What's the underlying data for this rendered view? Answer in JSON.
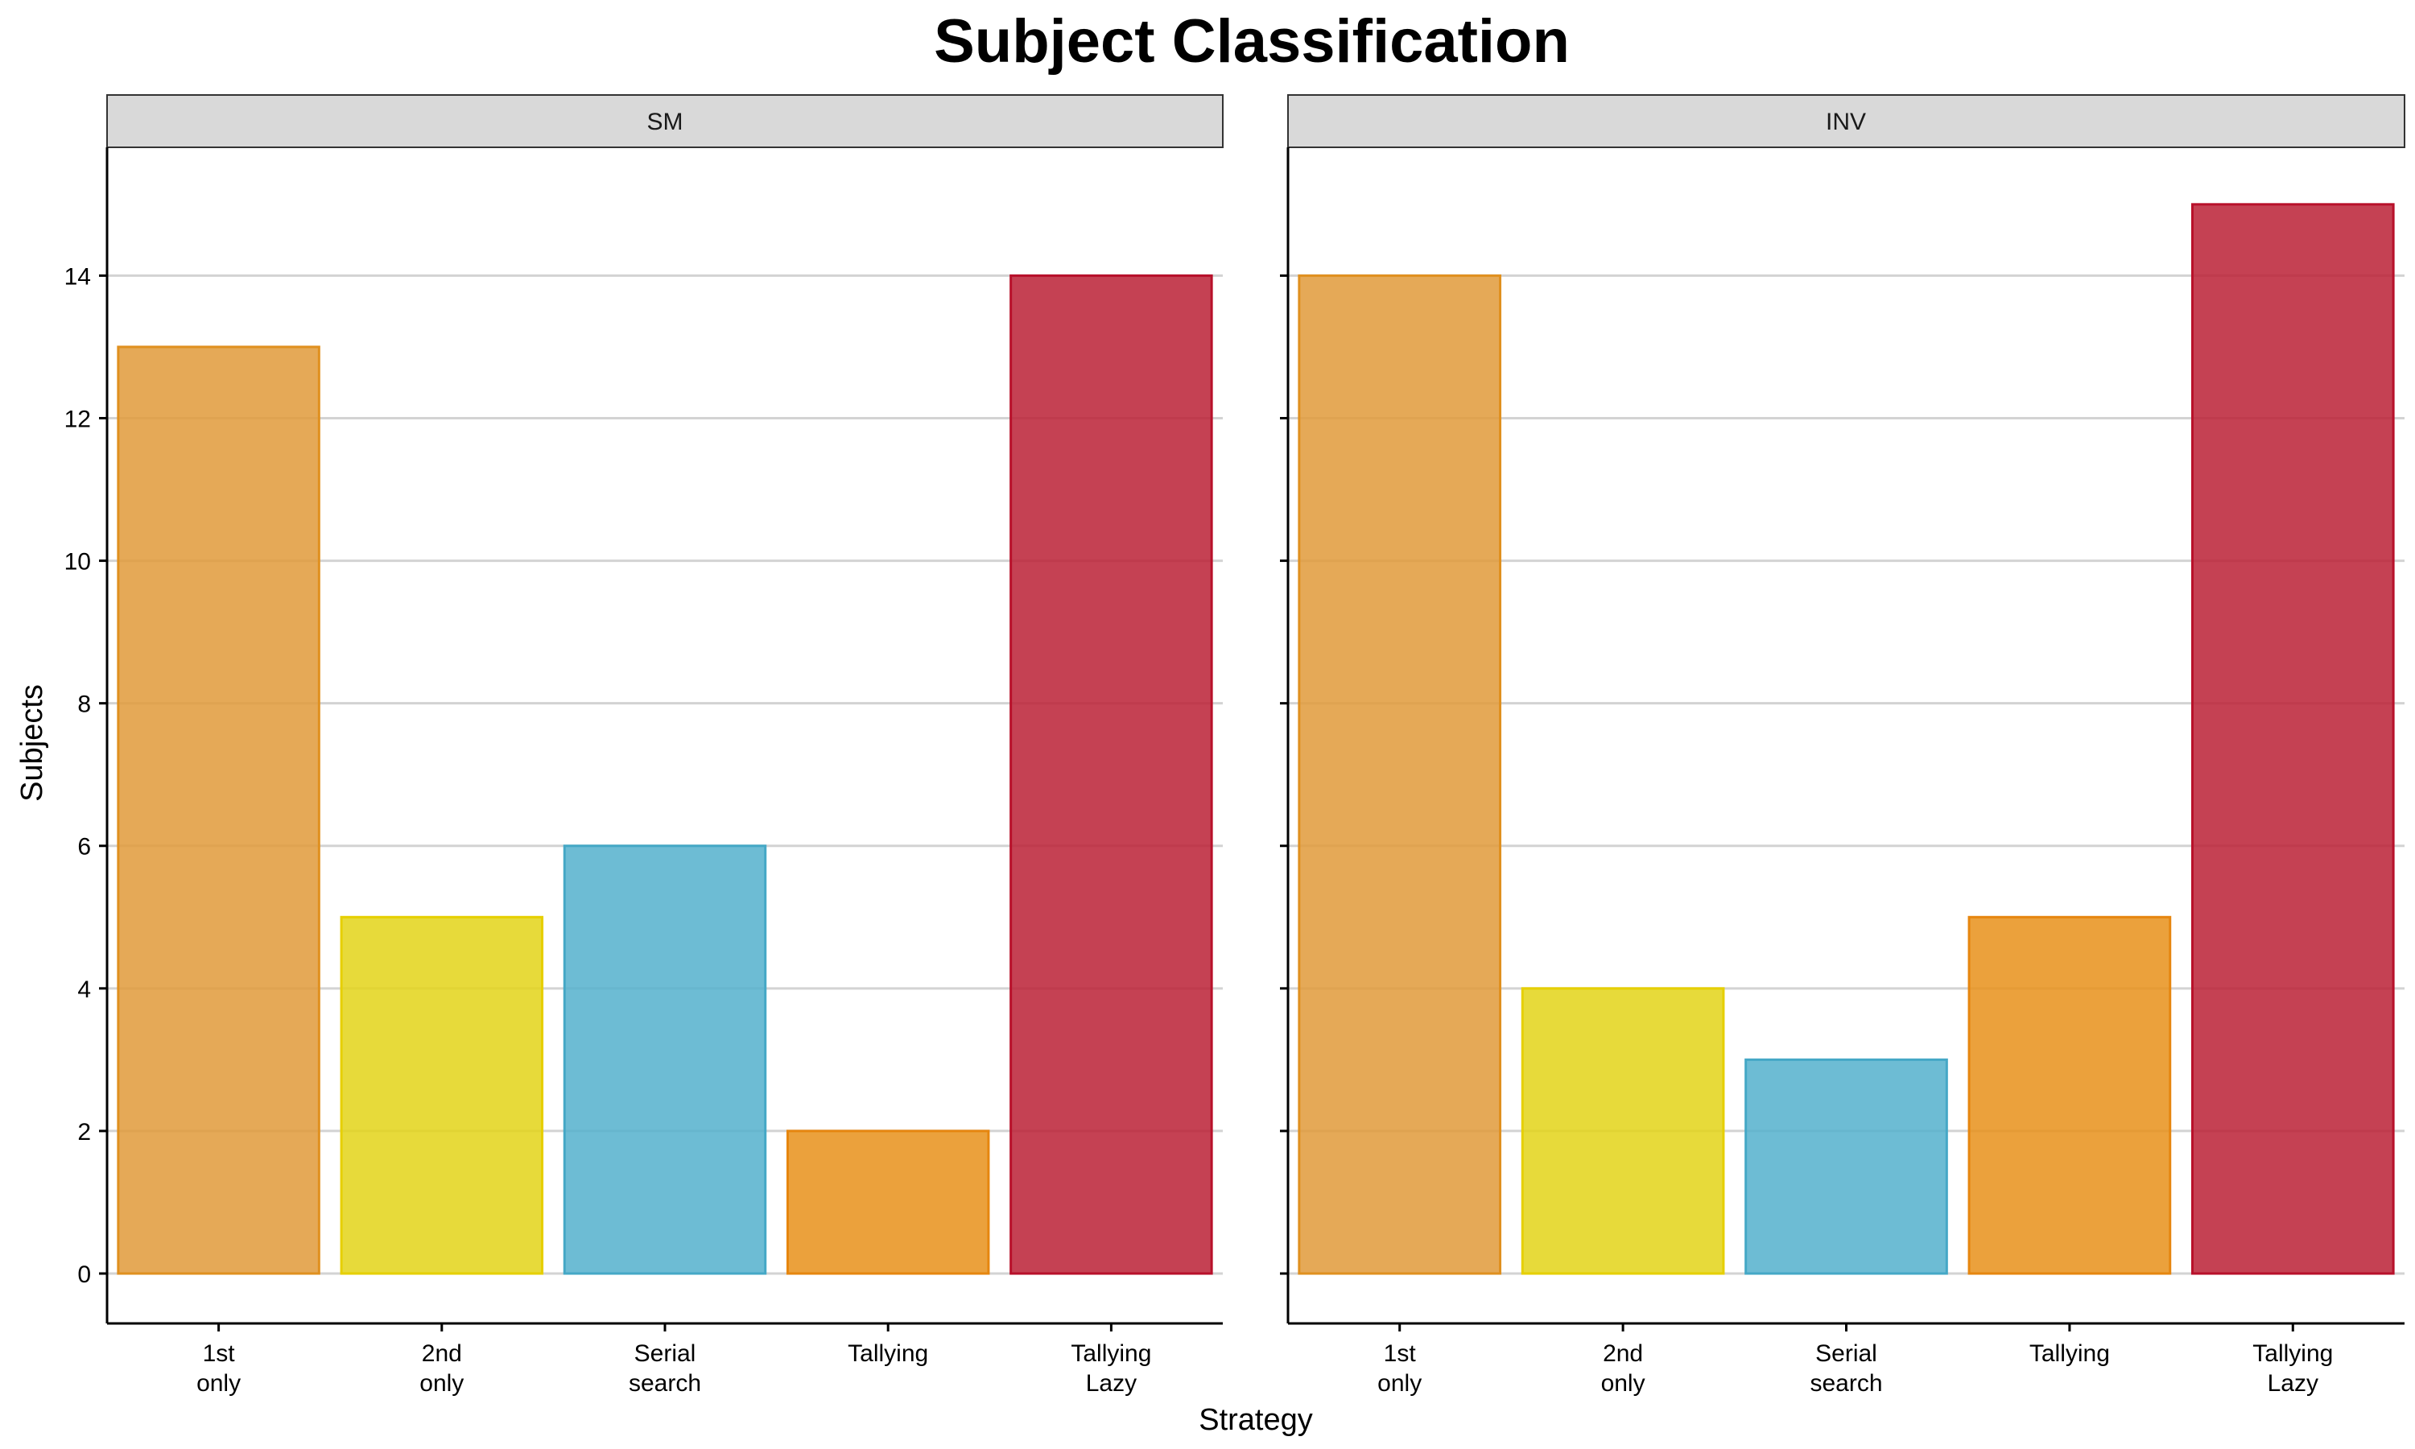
{
  "chart_data": {
    "type": "bar",
    "title": "Subject Classification",
    "xlabel": "Strategy",
    "ylabel": "Subjects",
    "ylim": [
      -0.7,
      15.8
    ],
    "yticks": [
      0,
      2,
      4,
      6,
      8,
      10,
      12,
      14
    ],
    "grid": "horizontal",
    "legend": "none",
    "categories": [
      "1st only",
      "2nd only",
      "Serial search",
      "Tallying",
      "Tallying Lazy"
    ],
    "category_colors": [
      "#E09A3A",
      "#E3D418",
      "#53B0CC",
      "#E8901A",
      "#BB2035"
    ],
    "category_border_colors": [
      "#E0901F",
      "#E6CF00",
      "#45A8C6",
      "#E6860F",
      "#B8102A"
    ],
    "panels": [
      {
        "label": "SM",
        "values": [
          13,
          5,
          6,
          2,
          14
        ]
      },
      {
        "label": "INV",
        "values": [
          14,
          4,
          3,
          5,
          15
        ]
      }
    ]
  }
}
